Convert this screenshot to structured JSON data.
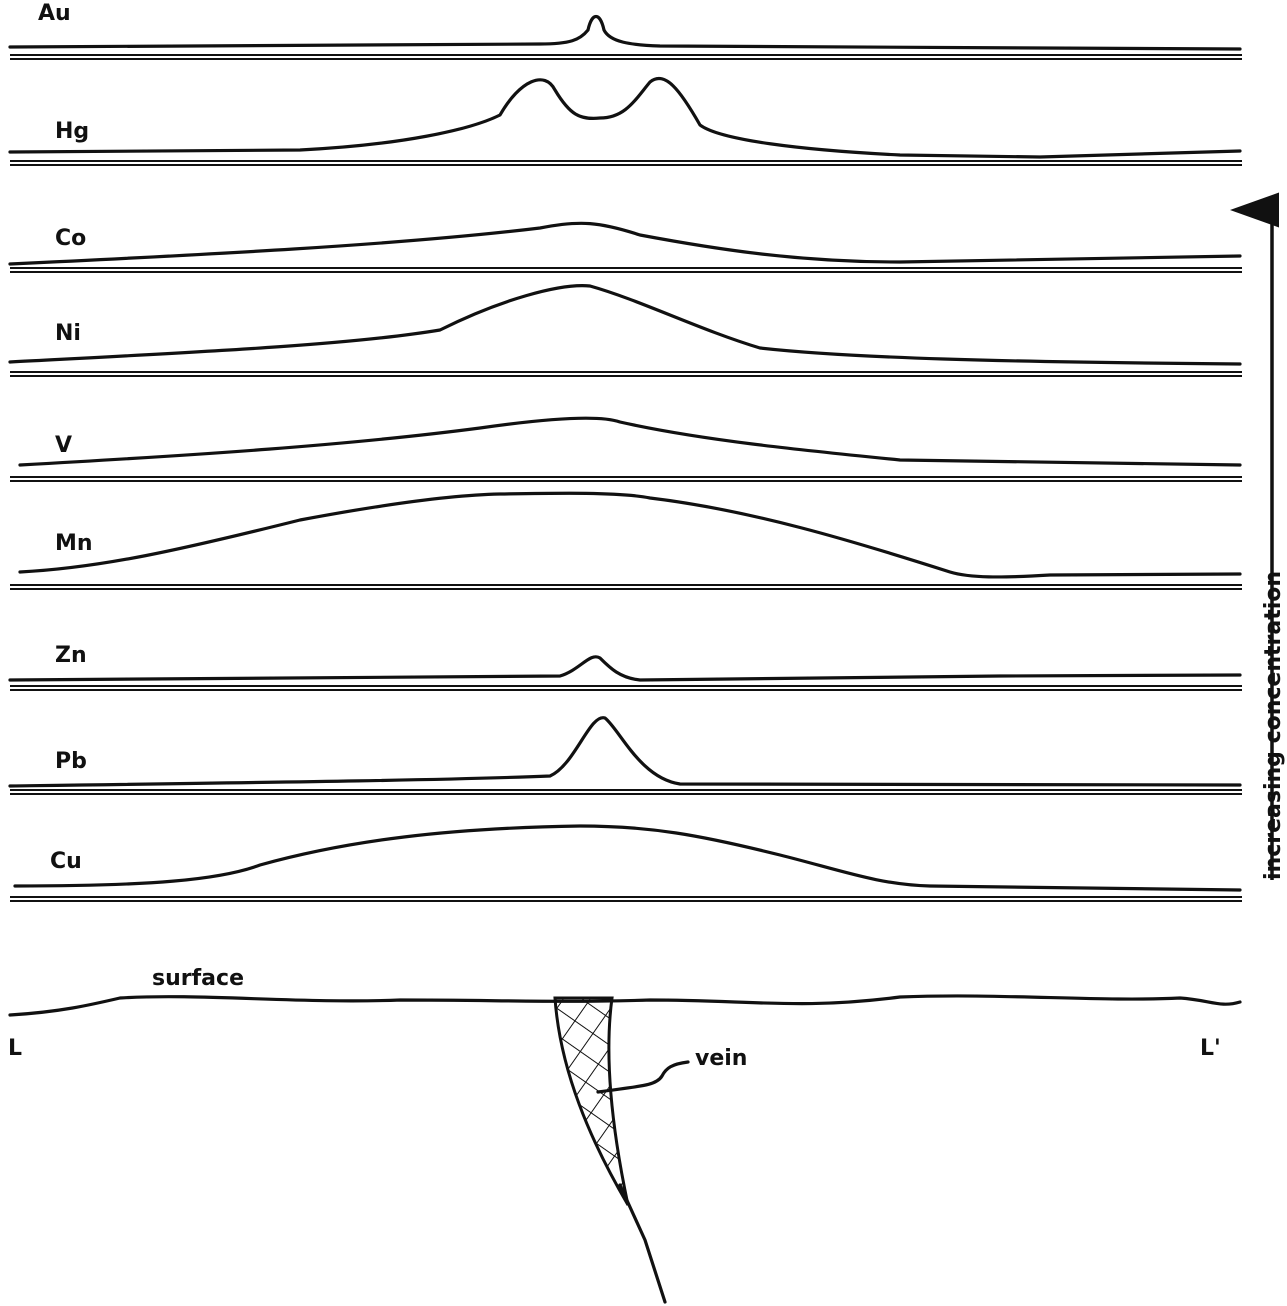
{
  "profiles": [
    {
      "label": "Au"
    },
    {
      "label": "Hg"
    },
    {
      "label": "Co"
    },
    {
      "label": "Ni"
    },
    {
      "label": "V"
    },
    {
      "label": "Mn"
    },
    {
      "label": "Zn"
    },
    {
      "label": "Pb"
    },
    {
      "label": "Cu"
    }
  ],
  "surface_label": "surface",
  "left_end": "L",
  "right_end": "L'",
  "vein_label": "vein",
  "axis_label": "increasing concentration"
}
